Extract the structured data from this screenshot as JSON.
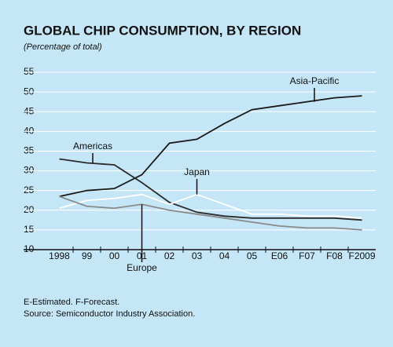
{
  "chart_data": {
    "type": "line",
    "title": "GLOBAL CHIP CONSUMPTION, BY REGION",
    "subtitle": "(Percentage of total)",
    "categories": [
      "1998",
      "99",
      "00",
      "01",
      "02",
      "03",
      "04",
      "05",
      "E06",
      "F07",
      "F08",
      "F2009"
    ],
    "series": [
      {
        "name": "Asia-Pacific",
        "color": "#1a1a1a",
        "values": [
          23.5,
          25,
          25.5,
          29,
          37,
          38,
          42,
          45.5,
          46.5,
          47.5,
          48.5,
          49
        ]
      },
      {
        "name": "Americas",
        "color": "#2a2a2a",
        "values": [
          33,
          32,
          31.5,
          27,
          22,
          19.5,
          18.5,
          18,
          18,
          18,
          18,
          17.5
        ]
      },
      {
        "name": "Japan",
        "color": "#ffffff",
        "values": [
          20.5,
          22.5,
          23,
          24,
          21.5,
          24,
          21.5,
          19,
          19,
          18.5,
          18.5,
          18
        ]
      },
      {
        "name": "Europe",
        "color": "#8a8a8a",
        "values": [
          23.5,
          21,
          20.5,
          21.5,
          20,
          19,
          18,
          17,
          16,
          15.5,
          15.5,
          15
        ]
      }
    ],
    "ylim": [
      10,
      55
    ],
    "yticks": [
      10,
      15,
      20,
      25,
      30,
      35,
      40,
      45,
      50,
      55
    ],
    "grid": true,
    "notes": [
      "E-Estimated. F-Forecast.",
      "Source: Semiconductor Industry Association."
    ]
  }
}
